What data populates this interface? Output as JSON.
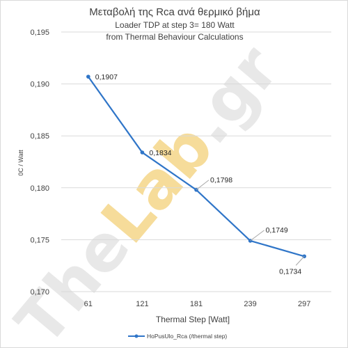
{
  "chart_data": {
    "type": "line",
    "title": "Μεταβολή της Rca ανά θερμικό βήμα",
    "subtitles": [
      "Loader TDP at step 3= 180 Watt",
      "from Thermal Behaviour Calculations"
    ],
    "xlabel": "Thermal Step [Watt]",
    "ylabel": "0C / Watt",
    "categories": [
      "61",
      "121",
      "181",
      "239",
      "297"
    ],
    "series": [
      {
        "name": "HoPusUlo_Rca (/thermal step)",
        "values": [
          0.1907,
          0.1834,
          0.1798,
          0.1749,
          0.1734
        ],
        "labels": [
          "0,1907",
          "0,1834",
          "0,1798",
          "0,1749",
          "0,1734"
        ],
        "color": "#2f75c8"
      }
    ],
    "ylim": [
      0.17,
      0.195
    ],
    "yticks": [
      0.17,
      0.175,
      0.18,
      0.185,
      0.19,
      0.195
    ],
    "ytick_labels": [
      "0,170",
      "0,175",
      "0,180",
      "0,185",
      "0,190",
      "0,195"
    ],
    "grid": true,
    "legend_position": "bottom"
  },
  "watermark": {
    "text_part1": "The",
    "text_part2": "Lab",
    "text_part3": ".gr",
    "color_main": "#e8e8e8",
    "color_accent": "#f6dc9a"
  }
}
